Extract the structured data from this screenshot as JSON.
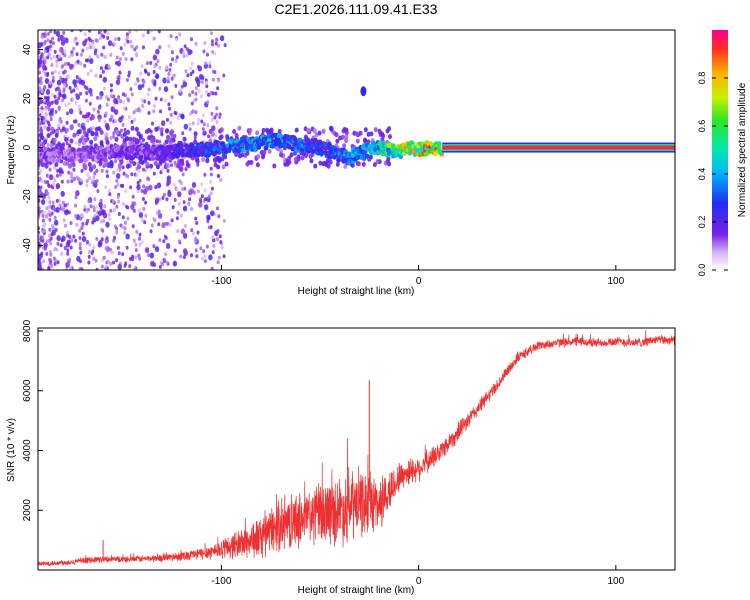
{
  "title": "C2E1.2026.111.09.41.E33",
  "chart_data": [
    {
      "type": "heatmap",
      "title": "C2E1.2026.111.09.41.E33",
      "xlabel": "Height of straight line (km)",
      "ylabel": "Frequency (Hz)",
      "xlim": [
        -193,
        130
      ],
      "ylim": [
        -50,
        48
      ],
      "xticks": [
        -100,
        0,
        100
      ],
      "xtick_labels": [
        "-100",
        "0",
        "100"
      ],
      "yticks": [
        -40,
        -20,
        0,
        20,
        40
      ],
      "ytick_labels": [
        "-40",
        "-20",
        "0",
        "20",
        "40"
      ],
      "grid": false,
      "description_of_ridge": {
        "x": [
          -190,
          -170,
          -150,
          -130,
          -110,
          -100,
          -90,
          -80,
          -70,
          -60,
          -50,
          -40,
          -35,
          -30,
          -25,
          -20,
          -15,
          -10,
          -5,
          0,
          5,
          10,
          15,
          20,
          40,
          60,
          80,
          100,
          130
        ],
        "y": [
          -3,
          -3,
          -2,
          -2,
          -1,
          0,
          1,
          2,
          3,
          1,
          0,
          -3,
          -4,
          -2,
          -1,
          0,
          -1,
          -2,
          0,
          -1,
          0,
          -1,
          0,
          0,
          0,
          0,
          0,
          0,
          0
        ],
        "amplitude": [
          0.15,
          0.15,
          0.18,
          0.2,
          0.3,
          0.35,
          0.4,
          0.45,
          0.4,
          0.35,
          0.3,
          0.35,
          0.4,
          0.45,
          0.5,
          0.55,
          0.65,
          0.75,
          0.8,
          0.85,
          0.9,
          0.9,
          0.95,
          1.0,
          1.0,
          1.0,
          1.0,
          1.0,
          1.0
        ]
      },
      "isolated_feature": {
        "x": -28,
        "y": 23,
        "amplitude": 0.25
      }
    },
    {
      "type": "colorbar",
      "label": "Normalized spectral amplitude",
      "range": [
        0.0,
        1.0
      ],
      "ticks": [
        0.0,
        0.2,
        0.4,
        0.6,
        0.8
      ],
      "tick_labels": [
        "0.0",
        "0.2",
        "0.4",
        "0.6",
        "0.8"
      ]
    },
    {
      "type": "line",
      "title": "",
      "xlabel": "Height of straight line (km)",
      "ylabel": "SNR (10 * v/v)",
      "xlim": [
        -193,
        130
      ],
      "ylim": [
        0,
        8100
      ],
      "xticks": [
        -100,
        0,
        100
      ],
      "xtick_labels": [
        "-100",
        "0",
        "100"
      ],
      "yticks": [
        2000,
        4000,
        6000,
        8000
      ],
      "ytick_labels": [
        "2000",
        "4000",
        "6000",
        "8000"
      ],
      "grid": false,
      "color": "#ee3030",
      "series": [
        {
          "name": "SNR",
          "x": [
            -193,
            -180,
            -170,
            -165,
            -150,
            -130,
            -110,
            -100,
            -90,
            -80,
            -70,
            -60,
            -50,
            -40,
            -35,
            -30,
            -25,
            -20,
            -15,
            -10,
            -5,
            0,
            10,
            20,
            30,
            40,
            50,
            60,
            70,
            80,
            90,
            100,
            110,
            120,
            130
          ],
          "y": [
            200,
            250,
            300,
            350,
            350,
            400,
            550,
            700,
            900,
            1100,
            1500,
            1700,
            1900,
            2000,
            2100,
            2200,
            2300,
            2200,
            2600,
            3100,
            3300,
            3400,
            3900,
            4600,
            5400,
            6200,
            7100,
            7500,
            7600,
            7650,
            7600,
            7650,
            7600,
            7700,
            7700
          ],
          "noise": [
            80,
            90,
            100,
            100,
            100,
            120,
            200,
            300,
            500,
            700,
            800,
            900,
            1000,
            1100,
            1200,
            1100,
            1000,
            900,
            700,
            500,
            450,
            400,
            350,
            300,
            250,
            200,
            180,
            150,
            150,
            150,
            150,
            150,
            150,
            150,
            150
          ]
        }
      ],
      "spikes": [
        {
          "x": -160,
          "y": 1000
        },
        {
          "x": -25,
          "y": 6350
        }
      ]
    }
  ]
}
